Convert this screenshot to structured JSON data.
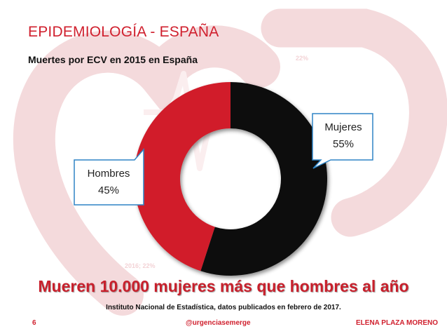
{
  "slide": {
    "title": "EPIDEMIOLOGÍA - ESPAÑA",
    "subtitle": "Muertes por ECV en 2015 en España",
    "ghost_top": "22%",
    "ghost_bottom": "2016; 22%",
    "headline": "Mueren 10.000 mujeres más que hombres al año",
    "source": "Instituto Nacional de Estadística, datos publicados en febrero de 2017.",
    "footer": {
      "page_number": "6",
      "handle": "@urgenciasemerge",
      "author": "ELENA PLAZA MORENO"
    }
  },
  "chart_data": {
    "type": "pie",
    "variant": "donut",
    "title": "Muertes por ECV en 2015 en España",
    "slices": [
      {
        "name": "Mujeres",
        "value": 55,
        "label": "55%",
        "color": "#0d0d0d"
      },
      {
        "name": "Hombres",
        "value": 45,
        "label": "45%",
        "color": "#d11f2a"
      }
    ]
  },
  "colors": {
    "accent_red": "#d0202e",
    "watermark": "#f4dadc",
    "callout_border": "#2e84c6"
  }
}
